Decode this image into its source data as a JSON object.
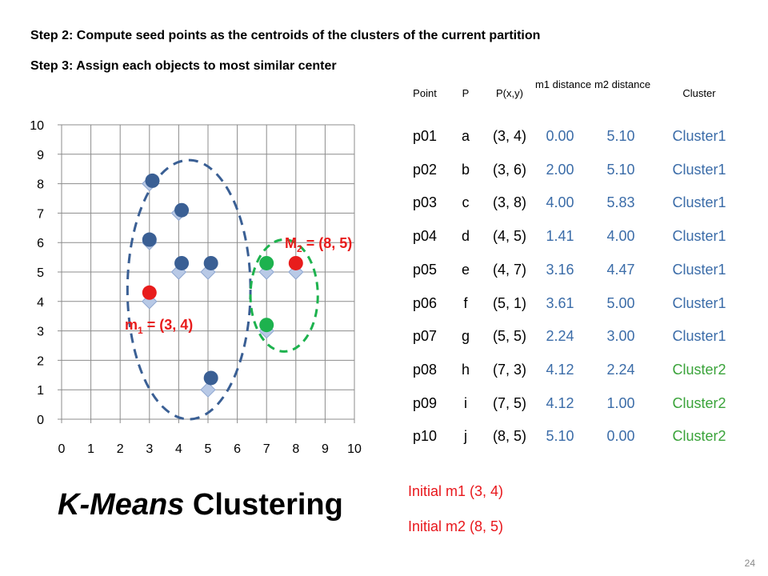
{
  "slide": {
    "step2": "Step 2: Compute seed points as the centroids of the clusters of the current partition",
    "step3": "Step 3: Assign each objects to most similar center",
    "title_italic": "K-Means",
    "title_rest": " Clustering",
    "page_number": "24"
  },
  "table": {
    "headers": [
      "Point",
      "P",
      "P(x,y)",
      "m1 distance",
      "m2 distance",
      "Cluster"
    ],
    "rows": [
      {
        "point": "p01",
        "p": "a",
        "pxy": "(3, 4)",
        "d1": "0.00",
        "d2": "5.10",
        "cluster": "Cluster1"
      },
      {
        "point": "p02",
        "p": "b",
        "pxy": "(3, 6)",
        "d1": "2.00",
        "d2": "5.10",
        "cluster": "Cluster1"
      },
      {
        "point": "p03",
        "p": "c",
        "pxy": "(3, 8)",
        "d1": "4.00",
        "d2": "5.83",
        "cluster": "Cluster1"
      },
      {
        "point": "p04",
        "p": "d",
        "pxy": "(4, 5)",
        "d1": "1.41",
        "d2": "4.00",
        "cluster": "Cluster1"
      },
      {
        "point": "p05",
        "p": "e",
        "pxy": "(4, 7)",
        "d1": "3.16",
        "d2": "4.47",
        "cluster": "Cluster1"
      },
      {
        "point": "p06",
        "p": "f",
        "pxy": "(5, 1)",
        "d1": "3.61",
        "d2": "5.00",
        "cluster": "Cluster1"
      },
      {
        "point": "p07",
        "p": "g",
        "pxy": "(5, 5)",
        "d1": "2.24",
        "d2": "3.00",
        "cluster": "Cluster1"
      },
      {
        "point": "p08",
        "p": "h",
        "pxy": "(7, 3)",
        "d1": "4.12",
        "d2": "2.24",
        "cluster": "Cluster2"
      },
      {
        "point": "p09",
        "p": "i",
        "pxy": "(7, 5)",
        "d1": "4.12",
        "d2": "1.00",
        "cluster": "Cluster2"
      },
      {
        "point": "p10",
        "p": "j",
        "pxy": "(8, 5)",
        "d1": "5.10",
        "d2": "0.00",
        "cluster": "Cluster2"
      }
    ],
    "colors": {
      "cluster1": "#3b6ca8",
      "cluster2": "#3aa33a"
    }
  },
  "initial": {
    "m1": "Initial m1 (3, 4)",
    "m2": "Initial m2 (8, 5)"
  },
  "chart_data": {
    "type": "scatter",
    "xlim": [
      0,
      10
    ],
    "ylim": [
      0,
      10
    ],
    "x_ticks": [
      0,
      1,
      2,
      3,
      4,
      5,
      6,
      7,
      8,
      9,
      10
    ],
    "y_ticks": [
      0,
      1,
      2,
      3,
      4,
      5,
      6,
      7,
      8,
      9,
      10
    ],
    "grid": true,
    "data_points": [
      {
        "x": 3,
        "y": 4
      },
      {
        "x": 3,
        "y": 6
      },
      {
        "x": 3,
        "y": 8
      },
      {
        "x": 4,
        "y": 5
      },
      {
        "x": 4,
        "y": 7
      },
      {
        "x": 5,
        "y": 1
      },
      {
        "x": 5,
        "y": 5
      },
      {
        "x": 7,
        "y": 3
      },
      {
        "x": 7,
        "y": 5
      },
      {
        "x": 8,
        "y": 5
      }
    ],
    "cluster1_points": [
      {
        "x": 3.1,
        "y": 8.1
      },
      {
        "x": 4.1,
        "y": 7.1
      },
      {
        "x": 3.0,
        "y": 6.1
      },
      {
        "x": 4.1,
        "y": 5.3
      },
      {
        "x": 5.1,
        "y": 5.3
      },
      {
        "x": 5.1,
        "y": 1.4
      }
    ],
    "cluster2_points": [
      {
        "x": 7.0,
        "y": 5.3
      },
      {
        "x": 7.0,
        "y": 3.2
      }
    ],
    "centroids": [
      {
        "x": 3.0,
        "y": 4.3
      },
      {
        "x": 8.0,
        "y": 5.3
      }
    ],
    "cluster1_ellipse": {
      "cx": 4.35,
      "cy": 4.4,
      "rx": 2.1,
      "ry": 4.4
    },
    "cluster2_ellipse": {
      "cx": 7.6,
      "cy": 4.2,
      "rx": 1.15,
      "ry": 1.9
    },
    "centroid_labels": [
      {
        "main": "m",
        "sub": "1",
        "rest": " = (3, 4)"
      },
      {
        "main": "M",
        "sub": "2",
        "rest": " = (8, 5)"
      }
    ],
    "colors": {
      "square": "#b8c9e6",
      "square_stroke": "#8ea6cf",
      "cluster1": "#3a5f94",
      "cluster2": "#1db24e",
      "centroid": "#e81c1c",
      "ellipse1": "#3a5f94",
      "ellipse2": "#1db24e",
      "label": "#e81c1c",
      "grid": "#8c8c8c"
    }
  }
}
